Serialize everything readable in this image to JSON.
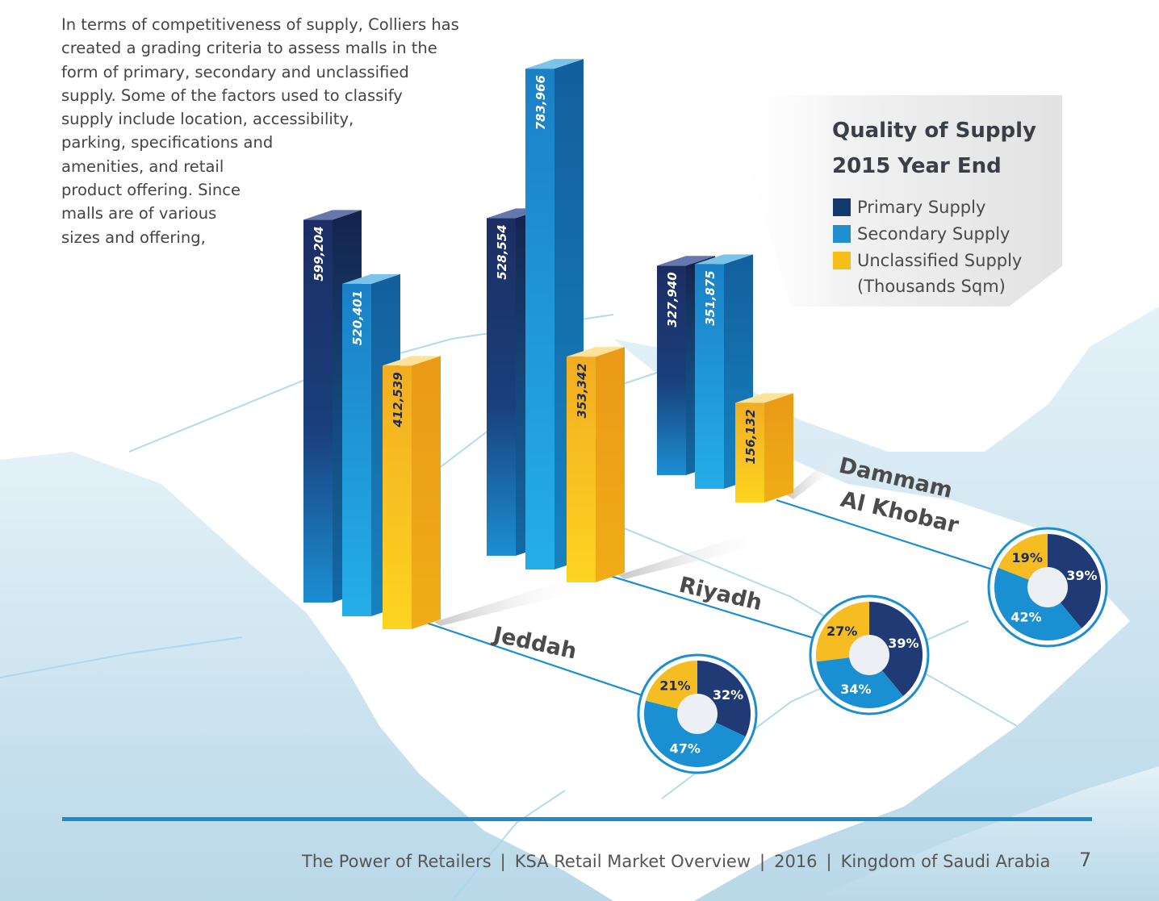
{
  "intro_lines": [
    "In terms of competitiveness of supply, Colliers has",
    "created a grading criteria to assess malls in the",
    "form of primary, secondary and unclassified",
    "supply. Some of the factors used to classify",
    "supply include location, accessibility,",
    "parking, specifications and",
    "amenities, and retail",
    "product offering. Since",
    "malls are of various",
    "sizes and offering,"
  ],
  "legend": {
    "title_line1": "Quality of Supply",
    "title_line2": "2015 Year End",
    "unit": "(Thousands Sqm)",
    "items": [
      {
        "label": "Primary Supply",
        "color": "#123a6e"
      },
      {
        "label": "Secondary Supply",
        "color": "#1f8fd0"
      },
      {
        "label": "Unclassified Supply",
        "color": "#f6bd1b"
      }
    ]
  },
  "chart_data": {
    "type": "bar",
    "title": "Quality of Supply 2015 Year End",
    "unit": "Thousands Sqm",
    "categories": [
      "Jeddah",
      "Riyadh",
      "Dammam Al Khobar"
    ],
    "category_labels": [
      [
        "Jeddah"
      ],
      [
        "Riyadh"
      ],
      [
        "Dammam",
        "Al Khobar"
      ]
    ],
    "series": [
      {
        "name": "Primary Supply",
        "values": [
          599204,
          528554,
          327940
        ],
        "labels": [
          "599,204",
          "528,554",
          "327,940"
        ]
      },
      {
        "name": "Secondary Supply",
        "values": [
          520401,
          783966,
          351875
        ],
        "labels": [
          "520,401",
          "783,966",
          "351,875"
        ]
      },
      {
        "name": "Unclassified Supply",
        "values": [
          412539,
          353342,
          156132
        ],
        "labels": [
          "412,539",
          "353,342",
          "156,132"
        ]
      }
    ],
    "share_pies": [
      {
        "city": "Jeddah",
        "primary": 32,
        "secondary": 47,
        "unclassified": 21
      },
      {
        "city": "Riyadh",
        "primary": 39,
        "secondary": 34,
        "unclassified": 27
      },
      {
        "city": "Dammam Al Khobar",
        "primary": 39,
        "secondary": 42,
        "unclassified": 19
      }
    ],
    "share_pie_labels": [
      {
        "primary": "32%",
        "secondary": "47%",
        "unclassified": "21%"
      },
      {
        "primary": "39%",
        "secondary": "34%",
        "unclassified": "27%"
      },
      {
        "primary": "39%",
        "secondary": "42%",
        "unclassified": "19%"
      }
    ]
  },
  "footer": {
    "parts": [
      "The Power of Retailers",
      "KSA Retail Market Overview",
      "2016",
      "Kingdom of Saudi Arabia"
    ],
    "separator": "|",
    "page_number": "7"
  }
}
